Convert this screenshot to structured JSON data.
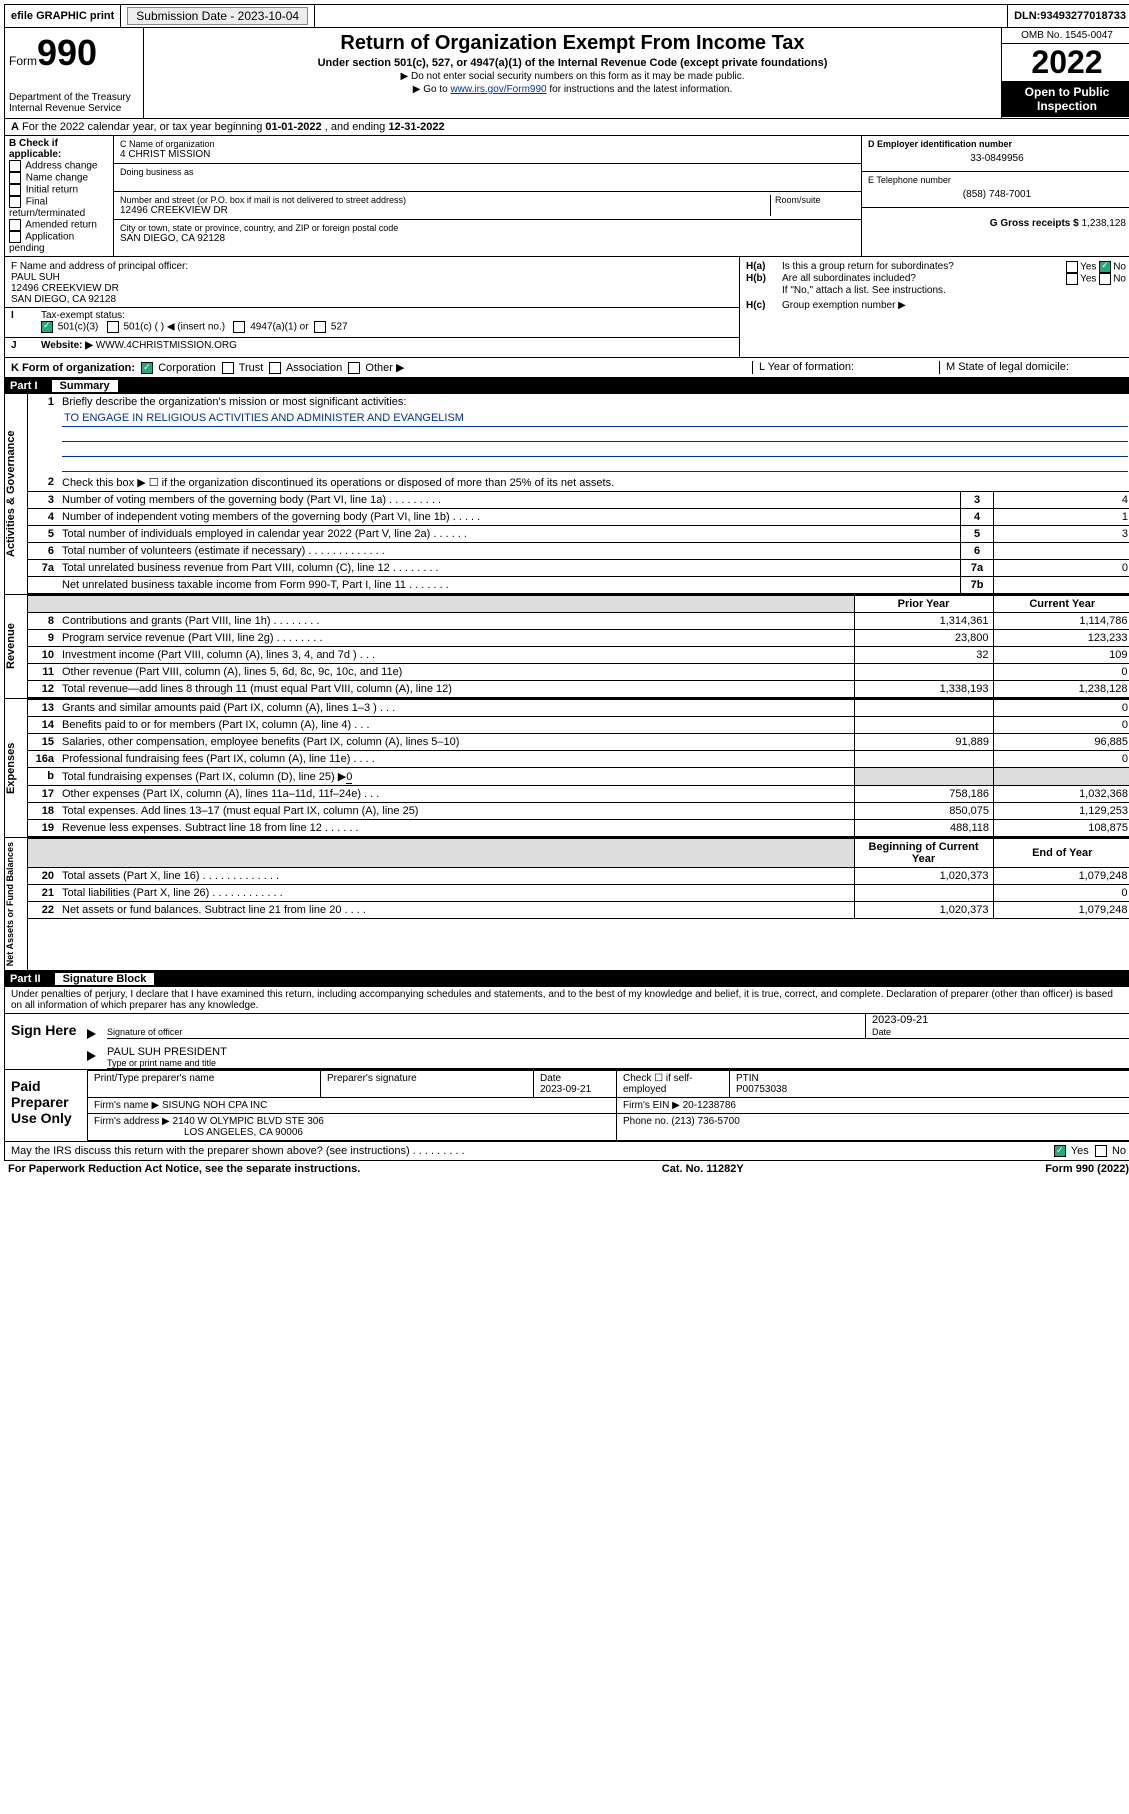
{
  "topbar": {
    "efile": "efile GRAPHIC print",
    "submission_label": "Submission Date - ",
    "submission_date": "2023-10-04",
    "dln_label": "DLN: ",
    "dln": "93493277018733"
  },
  "header": {
    "form_word": "Form",
    "form_num": "990",
    "dept": "Department of the Treasury",
    "irs": "Internal Revenue Service",
    "title": "Return of Organization Exempt From Income Tax",
    "sub": "Under section 501(c), 527, or 4947(a)(1) of the Internal Revenue Code (except private foundations)",
    "note1": "▶ Do not enter social security numbers on this form as it may be made public.",
    "note2_pre": "▶ Go to ",
    "note2_link": "www.irs.gov/Form990",
    "note2_post": " for instructions and the latest information.",
    "omb": "OMB No. 1545-0047",
    "year": "2022",
    "open": "Open to Public Inspection"
  },
  "rowA": {
    "text_pre": "For the 2022 calendar year, or tax year beginning ",
    "begin": "01-01-2022",
    "mid": " , and ending ",
    "end": "12-31-2022"
  },
  "colB": {
    "heading": "B Check if applicable:",
    "opts": [
      "Address change",
      "Name change",
      "Initial return",
      "Final return/terminated",
      "Amended return",
      "Application pending"
    ]
  },
  "colC": {
    "name_label": "C Name of organization",
    "name": "4 CHRIST MISSION",
    "dba_label": "Doing business as",
    "addr_label": "Number and street (or P.O. box if mail is not delivered to street address)",
    "room_label": "Room/suite",
    "addr": "12496 CREEKVIEW DR",
    "city_label": "City or town, state or province, country, and ZIP or foreign postal code",
    "city": "SAN DIEGO, CA  92128"
  },
  "colD": {
    "ein_label": "D Employer identification number",
    "ein": "33-0849956",
    "phone_label": "E Telephone number",
    "phone": "(858) 748-7001",
    "gross_label": "G Gross receipts $ ",
    "gross": "1,238,128"
  },
  "rowF": {
    "label": "F  Name and address of principal officer:",
    "name": "PAUL SUH",
    "addr1": "12496 CREEKVIEW DR",
    "addr2": "SAN DIEGO, CA  92128"
  },
  "rowH": {
    "ha": "Is this a group return for subordinates?",
    "hb": "Are all subordinates included?",
    "hb_note": "If \"No,\" attach a list. See instructions.",
    "hc": "Group exemption number ▶",
    "yes": "Yes",
    "no": "No"
  },
  "rowI": {
    "label": "Tax-exempt status:",
    "o1": "501(c)(3)",
    "o2": "501(c) (   ) ◀ (insert no.)",
    "o3": "4947(a)(1) or",
    "o4": "527"
  },
  "rowJ": {
    "label": "Website: ▶",
    "val": "WWW.4CHRISTMISSION.ORG"
  },
  "rowK": {
    "label": "K Form of organization:",
    "o1": "Corporation",
    "o2": "Trust",
    "o3": "Association",
    "o4": "Other ▶",
    "l_label": "L Year of formation:",
    "m_label": "M State of legal domicile:"
  },
  "part1": {
    "no": "Part I",
    "title": "Summary"
  },
  "tabs": {
    "gov": "Activities & Governance",
    "rev": "Revenue",
    "exp": "Expenses",
    "net": "Net Assets or Fund Balances"
  },
  "summary": {
    "l1": "Briefly describe the organization's mission or most significant activities:",
    "mission": "TO ENGAGE IN RELIGIOUS ACTIVITIES AND ADMINISTER AND EVANGELISM",
    "l2": "Check this box ▶ ☐ if the organization discontinued its operations or disposed of more than 25% of its net assets.",
    "l3": "Number of voting members of the governing body (Part VI, line 1a)  .    .    .    .    .    .    .    .    .",
    "l4": "Number of independent voting members of the governing body (Part VI, line 1b)  .    .    .    .    .",
    "l5": "Total number of individuals employed in calendar year 2022 (Part V, line 2a)   .    .    .    .    .    .",
    "l6": "Total number of volunteers (estimate if necessary)   .    .    .    .    .    .    .    .    .    .    .    .    .",
    "l7a": "Total unrelated business revenue from Part VIII, column (C), line 12   .    .    .    .    .    .    .    .",
    "l7b": "Net unrelated business taxable income from Form 990-T, Part I, line 11   .    .    .    .    .    .    .",
    "v3": "4",
    "v4": "1",
    "v5": "3",
    "v6": "",
    "v7a": "0",
    "v7b": "",
    "prior": "Prior Year",
    "current": "Current Year",
    "l8": "Contributions and grants (Part VIII, line 1h)   .    .    .    .    .    .    .    .",
    "l9": "Program service revenue (Part VIII, line 2g)   .    .    .    .    .    .    .    .",
    "l10": "Investment income (Part VIII, column (A), lines 3, 4, and 7d )   .    .    .",
    "l11": "Other revenue (Part VIII, column (A), lines 5, 6d, 8c, 9c, 10c, and 11e)",
    "l12": "Total revenue—add lines 8 through 11 (must equal Part VIII, column (A), line 12)",
    "p8": "1,314,361",
    "c8": "1,114,786",
    "p9": "23,800",
    "c9": "123,233",
    "p10": "32",
    "c10": "109",
    "p11": "",
    "c11": "0",
    "p12": "1,338,193",
    "c12": "1,238,128",
    "l13": "Grants and similar amounts paid (Part IX, column (A), lines 1–3 )  .    .    .",
    "l14": "Benefits paid to or for members (Part IX, column (A), line 4)  .    .    .",
    "l15": "Salaries, other compensation, employee benefits (Part IX, column (A), lines 5–10)",
    "l16a": "Professional fundraising fees (Part IX, column (A), line 11e)  .    .    .    .",
    "l16b_pre": "Total fundraising expenses (Part IX, column (D), line 25) ▶",
    "l16b_val": "0",
    "l17": "Other expenses (Part IX, column (A), lines 11a–11d, 11f–24e)   .    .    .",
    "l18": "Total expenses. Add lines 13–17 (must equal Part IX, column (A), line 25)",
    "l19": "Revenue less expenses. Subtract line 18 from line 12  .    .    .    .    .    .",
    "p13": "",
    "c13": "0",
    "p14": "",
    "c14": "0",
    "p15": "91,889",
    "c15": "96,885",
    "p16a": "",
    "c16a": "0",
    "p17": "758,186",
    "c17": "1,032,368",
    "p18": "850,075",
    "c18": "1,129,253",
    "p19": "488,118",
    "c19": "108,875",
    "begin": "Beginning of Current Year",
    "end": "End of Year",
    "l20": "Total assets (Part X, line 16)  .    .    .    .    .    .    .    .    .    .    .    .    .",
    "l21": "Total liabilities (Part X, line 26)  .    .    .    .    .    .    .    .    .    .    .    .",
    "l22": "Net assets or fund balances. Subtract line 21 from line 20   .    .    .    .",
    "b20": "1,020,373",
    "e20": "1,079,248",
    "b21": "",
    "e21": "0",
    "b22": "1,020,373",
    "e22": "1,079,248"
  },
  "part2": {
    "no": "Part II",
    "title": "Signature Block"
  },
  "sig": {
    "penalty": "Under penalties of perjury, I declare that I have examined this return, including accompanying schedules and statements, and to the best of my knowledge and belief, it is true, correct, and complete. Declaration of preparer (other than officer) is based on all information of which preparer has any knowledge.",
    "sign_here": "Sign Here",
    "sig_officer": "Signature of officer",
    "date": "Date",
    "date_val": "2023-09-21",
    "officer_name": "PAUL SUH  PRESIDENT",
    "type_name": "Type or print name and title",
    "paid": "Paid Preparer Use Only",
    "prep_name_h": "Print/Type preparer's name",
    "prep_sig_h": "Preparer's signature",
    "prep_date_h": "Date",
    "prep_date": "2023-09-21",
    "check_if": "Check ☐ if self-employed",
    "ptin_h": "PTIN",
    "ptin": "P00753038",
    "firm_name_l": "Firm's name   ▶",
    "firm_name": "SISUNG NOH CPA INC",
    "firm_ein_l": "Firm's EIN ▶",
    "firm_ein": "20-1238786",
    "firm_addr_l": "Firm's address ▶",
    "firm_addr1": "2140 W OLYMPIC BLVD STE 306",
    "firm_addr2": "LOS ANGELES, CA  90006",
    "phone_l": "Phone no.",
    "phone": "(213) 736-5700",
    "may_irs": "May the IRS discuss this return with the preparer shown above? (see instructions)   .    .    .    .    .    .    .    .    .",
    "yes": "Yes",
    "no": "No"
  },
  "footer": {
    "pra": "For Paperwork Reduction Act Notice, see the separate instructions.",
    "cat": "Cat. No. 11282Y",
    "form": "Form 990 (2022)"
  }
}
